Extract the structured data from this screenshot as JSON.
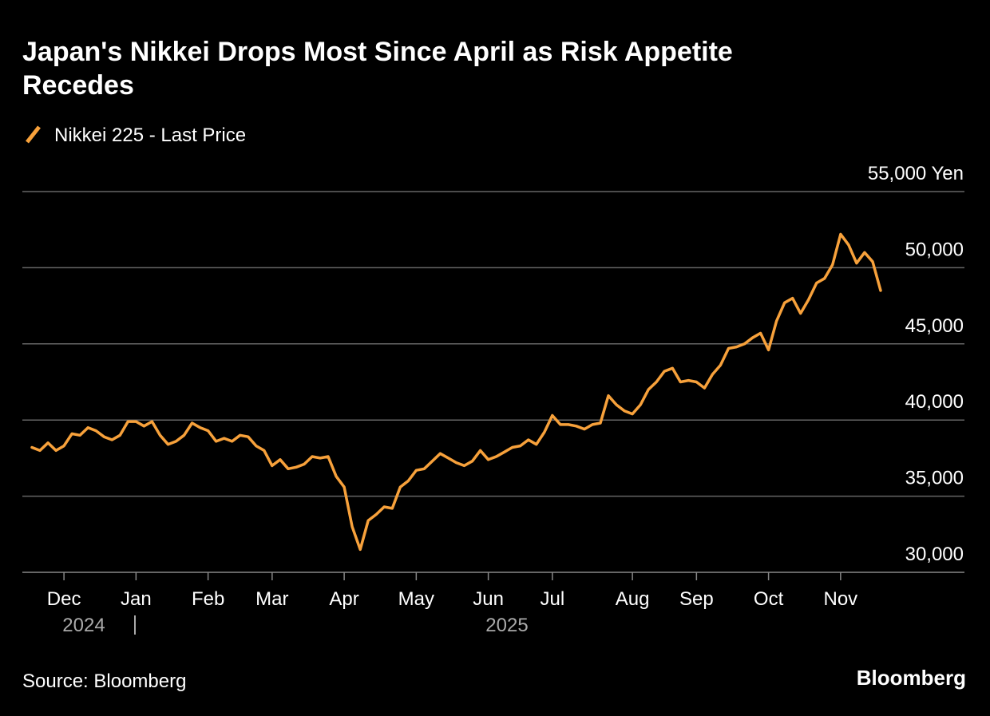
{
  "chart_data": {
    "type": "line",
    "title": "Japan's Nikkei Drops Most Since April as Risk Appetite Recedes",
    "source": "Source: Bloomberg",
    "brand": "Bloomberg",
    "years": [
      "2024",
      "2025"
    ],
    "categories": [
      null,
      null,
      null,
      null,
      "Dec",
      null,
      null,
      null,
      null,
      null,
      null,
      null,
      null,
      "Jan",
      null,
      null,
      null,
      null,
      null,
      null,
      null,
      null,
      "Feb",
      null,
      null,
      null,
      null,
      null,
      null,
      null,
      "Mar",
      null,
      null,
      null,
      null,
      null,
      null,
      null,
      null,
      "Apr",
      null,
      null,
      null,
      null,
      null,
      null,
      null,
      null,
      "May",
      null,
      null,
      null,
      null,
      null,
      null,
      null,
      null,
      "Jun",
      null,
      null,
      null,
      null,
      null,
      null,
      null,
      "Jul",
      null,
      null,
      null,
      null,
      null,
      null,
      null,
      null,
      null,
      "Aug",
      null,
      null,
      null,
      null,
      null,
      null,
      null,
      "Sep",
      null,
      null,
      null,
      null,
      null,
      null,
      null,
      null,
      "Oct",
      null,
      null,
      null,
      null,
      null,
      null,
      null,
      null,
      "Nov",
      null,
      null,
      null,
      null,
      null
    ],
    "series": [
      {
        "name": "Nikkei 225 - Last Price",
        "color": "#f7a13b",
        "values": [
          38200,
          38000,
          38500,
          38000,
          38300,
          39100,
          39000,
          39500,
          39300,
          38900,
          38700,
          39000,
          39900,
          39900,
          39600,
          39900,
          39000,
          38400,
          38600,
          39000,
          39800,
          39500,
          39300,
          38600,
          38800,
          38600,
          39000,
          38900,
          38300,
          38000,
          37000,
          37400,
          36800,
          36900,
          37100,
          37600,
          37500,
          37600,
          36300,
          35600,
          33000,
          31500,
          33400,
          33800,
          34300,
          34200,
          35600,
          36000,
          36700,
          36800,
          37300,
          37800,
          37500,
          37200,
          37000,
          37300,
          38000,
          37400,
          37600,
          37900,
          38200,
          38300,
          38700,
          38400,
          39200,
          40300,
          39700,
          39700,
          39600,
          39400,
          39700,
          39800,
          41600,
          41000,
          40600,
          40400,
          41000,
          42000,
          42500,
          43200,
          43400,
          42500,
          42600,
          42500,
          42100,
          43000,
          43600,
          44700,
          44800,
          45000,
          45400,
          45700,
          44600,
          46500,
          47700,
          48000,
          47000,
          47900,
          49000,
          49300,
          50200,
          52200,
          51500,
          50300,
          51000,
          50400,
          48500
        ]
      }
    ],
    "ylim": [
      30000,
      55000
    ],
    "yticks": [
      {
        "value": 30000,
        "label": "30,000"
      },
      {
        "value": 35000,
        "label": "35,000"
      },
      {
        "value": 40000,
        "label": "40,000"
      },
      {
        "value": 45000,
        "label": "45,000"
      },
      {
        "value": 50000,
        "label": "50,000"
      },
      {
        "value": 55000,
        "label": "55,000 Yen"
      }
    ],
    "grid": true
  }
}
